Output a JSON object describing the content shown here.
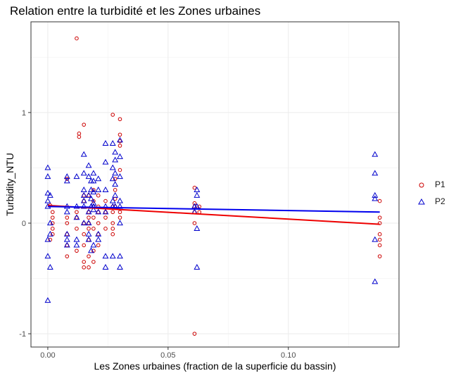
{
  "chart_data": {
    "type": "scatter",
    "title": "Relation entre la turbidité et les Zones urbaines",
    "xlabel": "Les Zones urbaines (fraction de la superficie du bassin)",
    "ylabel": "Turbidity_NTU",
    "xlim": [
      -0.007,
      0.146
    ],
    "ylim": [
      -1.12,
      1.82
    ],
    "x_ticks": [
      0.0,
      0.05,
      0.1
    ],
    "x_tick_labels": [
      "0.00",
      "0.05",
      "0.10"
    ],
    "y_ticks": [
      -1,
      0,
      1
    ],
    "y_tick_labels": [
      "-1",
      "0",
      "1"
    ],
    "grid": true,
    "legend_position": "right",
    "series": [
      {
        "name": "P1",
        "marker": "circle",
        "color": "#cc0000",
        "points": [
          [
            0.001,
            0.16
          ],
          [
            0.002,
            0.1
          ],
          [
            0.002,
            0.05
          ],
          [
            0.002,
            0.0
          ],
          [
            0.002,
            -0.05
          ],
          [
            0.002,
            -0.1
          ],
          [
            0.001,
            -0.15
          ],
          [
            0.008,
            0.4
          ],
          [
            0.008,
            0.05
          ],
          [
            0.008,
            0.0
          ],
          [
            0.008,
            -0.1
          ],
          [
            0.008,
            -0.2
          ],
          [
            0.008,
            -0.3
          ],
          [
            0.012,
            1.67
          ],
          [
            0.013,
            0.81
          ],
          [
            0.013,
            0.78
          ],
          [
            0.012,
            0.1
          ],
          [
            0.012,
            0.05
          ],
          [
            0.012,
            -0.25
          ],
          [
            0.012,
            -0.05
          ],
          [
            0.015,
            0.89
          ],
          [
            0.015,
            0.25
          ],
          [
            0.015,
            0.2
          ],
          [
            0.015,
            0.0
          ],
          [
            0.015,
            -0.1
          ],
          [
            0.015,
            -0.2
          ],
          [
            0.015,
            -0.35
          ],
          [
            0.015,
            -0.4
          ],
          [
            0.017,
            0.25
          ],
          [
            0.017,
            0.1
          ],
          [
            0.017,
            0.05
          ],
          [
            0.017,
            0.0
          ],
          [
            0.017,
            -0.05
          ],
          [
            0.017,
            -0.15
          ],
          [
            0.017,
            -0.3
          ],
          [
            0.017,
            -0.4
          ],
          [
            0.019,
            0.3
          ],
          [
            0.019,
            0.2
          ],
          [
            0.019,
            0.15
          ],
          [
            0.019,
            0.05
          ],
          [
            0.019,
            -0.05
          ],
          [
            0.019,
            -0.25
          ],
          [
            0.019,
            -0.35
          ],
          [
            0.021,
            0.25
          ],
          [
            0.021,
            0.15
          ],
          [
            0.021,
            0.1
          ],
          [
            0.021,
            0.0
          ],
          [
            0.021,
            -0.1
          ],
          [
            0.021,
            -0.2
          ],
          [
            0.024,
            0.2
          ],
          [
            0.024,
            0.1
          ],
          [
            0.024,
            0.05
          ],
          [
            0.024,
            -0.05
          ],
          [
            0.027,
            0.98
          ],
          [
            0.027,
            0.15
          ],
          [
            0.027,
            0.1
          ],
          [
            0.027,
            0.0
          ],
          [
            0.027,
            -0.05
          ],
          [
            0.027,
            -0.1
          ],
          [
            0.028,
            0.4
          ],
          [
            0.028,
            0.3
          ],
          [
            0.028,
            0.22
          ],
          [
            0.028,
            0.15
          ],
          [
            0.03,
            0.94
          ],
          [
            0.03,
            0.8
          ],
          [
            0.03,
            0.74
          ],
          [
            0.03,
            0.7
          ],
          [
            0.03,
            0.48
          ],
          [
            0.03,
            0.1
          ],
          [
            0.03,
            0.05
          ],
          [
            0.061,
            0.32
          ],
          [
            0.061,
            0.18
          ],
          [
            0.061,
            0.15
          ],
          [
            0.061,
            0.1
          ],
          [
            0.061,
            0.0
          ],
          [
            0.061,
            -1.0
          ],
          [
            0.063,
            0.15
          ],
          [
            0.063,
            0.1
          ],
          [
            0.138,
            0.2
          ],
          [
            0.138,
            0.05
          ],
          [
            0.138,
            0.0
          ],
          [
            0.138,
            -0.1
          ],
          [
            0.138,
            -0.15
          ],
          [
            0.138,
            -0.2
          ],
          [
            0.138,
            -0.3
          ]
        ]
      },
      {
        "name": "P2",
        "marker": "triangle",
        "color": "#0000cc",
        "points": [
          [
            0.0,
            0.5
          ],
          [
            0.0,
            0.42
          ],
          [
            0.0,
            0.27
          ],
          [
            0.0,
            0.2
          ],
          [
            0.0,
            0.15
          ],
          [
            0.0,
            -0.15
          ],
          [
            0.0,
            -0.3
          ],
          [
            0.0,
            -0.7
          ],
          [
            0.001,
            0.25
          ],
          [
            0.001,
            0.0
          ],
          [
            0.001,
            -0.1
          ],
          [
            0.001,
            -0.4
          ],
          [
            0.008,
            0.42
          ],
          [
            0.008,
            0.38
          ],
          [
            0.008,
            0.15
          ],
          [
            0.008,
            0.1
          ],
          [
            0.008,
            -0.1
          ],
          [
            0.008,
            -0.15
          ],
          [
            0.008,
            -0.2
          ],
          [
            0.012,
            0.42
          ],
          [
            0.012,
            0.15
          ],
          [
            0.012,
            0.05
          ],
          [
            0.012,
            -0.15
          ],
          [
            0.012,
            -0.2
          ],
          [
            0.015,
            0.62
          ],
          [
            0.015,
            0.45
          ],
          [
            0.015,
            0.3
          ],
          [
            0.015,
            0.25
          ],
          [
            0.015,
            0.2
          ],
          [
            0.015,
            0.15
          ],
          [
            0.015,
            0.0
          ],
          [
            0.017,
            0.52
          ],
          [
            0.017,
            0.42
          ],
          [
            0.017,
            0.25
          ],
          [
            0.017,
            0.1
          ],
          [
            0.017,
            0.0
          ],
          [
            0.017,
            -0.1
          ],
          [
            0.017,
            -0.15
          ],
          [
            0.018,
            0.38
          ],
          [
            0.018,
            0.3
          ],
          [
            0.018,
            0.22
          ],
          [
            0.018,
            0.15
          ],
          [
            0.018,
            -0.25
          ],
          [
            0.019,
            0.45
          ],
          [
            0.019,
            0.38
          ],
          [
            0.019,
            0.28
          ],
          [
            0.019,
            0.18
          ],
          [
            0.019,
            0.15
          ],
          [
            0.019,
            0.12
          ],
          [
            0.019,
            -0.2
          ],
          [
            0.021,
            0.4
          ],
          [
            0.021,
            0.3
          ],
          [
            0.021,
            0.1
          ],
          [
            0.021,
            -0.1
          ],
          [
            0.021,
            -0.15
          ],
          [
            0.024,
            0.72
          ],
          [
            0.024,
            0.55
          ],
          [
            0.024,
            0.3
          ],
          [
            0.024,
            0.15
          ],
          [
            0.024,
            0.1
          ],
          [
            0.024,
            -0.3
          ],
          [
            0.024,
            -0.4
          ],
          [
            0.027,
            0.72
          ],
          [
            0.027,
            0.5
          ],
          [
            0.027,
            0.4
          ],
          [
            0.027,
            0.2
          ],
          [
            0.027,
            0.15
          ],
          [
            0.027,
            -0.3
          ],
          [
            0.028,
            0.64
          ],
          [
            0.028,
            0.57
          ],
          [
            0.028,
            0.45
          ],
          [
            0.028,
            0.35
          ],
          [
            0.028,
            0.25
          ],
          [
            0.028,
            0.15
          ],
          [
            0.03,
            0.75
          ],
          [
            0.03,
            0.6
          ],
          [
            0.03,
            0.42
          ],
          [
            0.03,
            0.2
          ],
          [
            0.03,
            0.15
          ],
          [
            0.03,
            0.0
          ],
          [
            0.03,
            -0.3
          ],
          [
            0.03,
            -0.4
          ],
          [
            0.061,
            0.15
          ],
          [
            0.061,
            0.1
          ],
          [
            0.062,
            0.3
          ],
          [
            0.062,
            0.25
          ],
          [
            0.062,
            0.15
          ],
          [
            0.062,
            -0.05
          ],
          [
            0.062,
            -0.4
          ],
          [
            0.136,
            0.62
          ],
          [
            0.136,
            0.45
          ],
          [
            0.136,
            0.25
          ],
          [
            0.136,
            0.22
          ],
          [
            0.136,
            -0.15
          ],
          [
            0.136,
            -0.53
          ]
        ]
      }
    ],
    "trend_lines": [
      {
        "series": "P1",
        "color": "#ee0000",
        "x": [
          0.0,
          0.138
        ],
        "y": [
          0.16,
          -0.01
        ]
      },
      {
        "series": "P2",
        "color": "#0000ee",
        "x": [
          0.0,
          0.138
        ],
        "y": [
          0.15,
          0.1
        ]
      }
    ]
  }
}
